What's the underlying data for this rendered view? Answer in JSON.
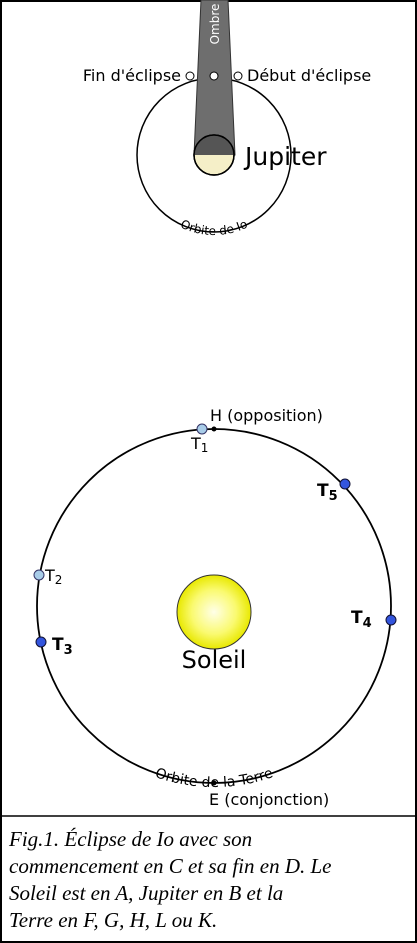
{
  "jupiter_view": {
    "shadow_label": "Ombre",
    "eclipse_end": "Fin d'éclipse",
    "eclipse_start": "Début d'éclipse",
    "planet": "Jupiter",
    "orbit": "Orbite de Io"
  },
  "earth_view": {
    "opposition": "H (opposition)",
    "conjunction": "E (conjonction)",
    "sun": "Soleil",
    "orbit": "Orbite de la Terre",
    "positions": [
      {
        "letter": "T",
        "index": "1"
      },
      {
        "letter": "T",
        "index": "2"
      },
      {
        "letter": "T",
        "index": "3"
      },
      {
        "letter": "T",
        "index": "4"
      },
      {
        "letter": "T",
        "index": "5"
      }
    ]
  },
  "caption": [
    "Fig.1. Éclipse de Io avec son",
    "commencement en C et sa fin en D. Le",
    "Soleil est en A, Jupiter en B et la",
    "Terre en F, G, H, L ou K."
  ]
}
